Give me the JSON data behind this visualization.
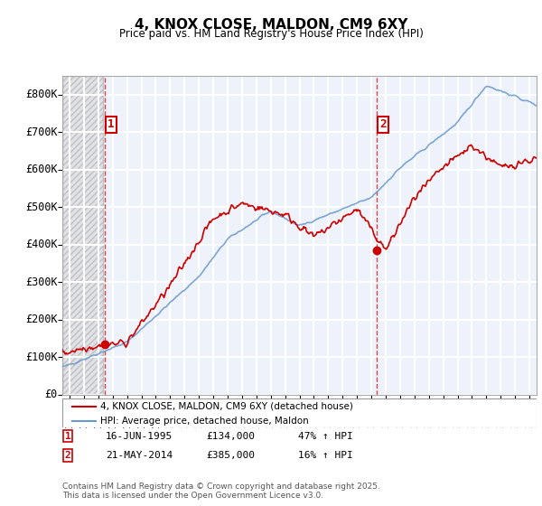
{
  "title": "4, KNOX CLOSE, MALDON, CM9 6XY",
  "subtitle": "Price paid vs. HM Land Registry's House Price Index (HPI)",
  "ylim": [
    0,
    850000
  ],
  "yticks": [
    0,
    100000,
    200000,
    300000,
    400000,
    500000,
    600000,
    700000,
    800000
  ],
  "ytick_labels": [
    "£0",
    "£100K",
    "£200K",
    "£300K",
    "£400K",
    "£500K",
    "£600K",
    "£700K",
    "£800K"
  ],
  "background_color": "#eef2fb",
  "grid_color": "#ffffff",
  "sale1_date": 1995.46,
  "sale1_price": 134000,
  "sale1_label": "1",
  "sale2_date": 2014.39,
  "sale2_price": 385000,
  "sale2_label": "2",
  "line_red_color": "#cc0000",
  "line_blue_color": "#6699cc",
  "legend_label_red": "4, KNOX CLOSE, MALDON, CM9 6XY (detached house)",
  "legend_label_blue": "HPI: Average price, detached house, Maldon",
  "table_entries": [
    [
      "1",
      "16-JUN-1995",
      "£134,000",
      "47% ↑ HPI"
    ],
    [
      "2",
      "21-MAY-2014",
      "£385,000",
      "16% ↑ HPI"
    ]
  ],
  "footer_text": "Contains HM Land Registry data © Crown copyright and database right 2025.\nThis data is licensed under the Open Government Licence v3.0.",
  "xmin": 1992.5,
  "xmax": 2025.5
}
